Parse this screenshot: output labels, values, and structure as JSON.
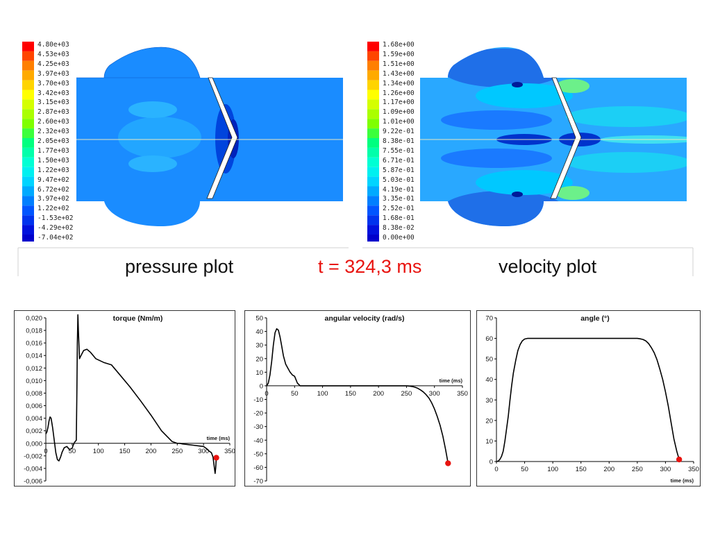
{
  "sim": {
    "pressure_legend": [
      "4.80e+03",
      "4.53e+03",
      "4.25e+03",
      "3.97e+03",
      "3.70e+03",
      "3.42e+03",
      "3.15e+03",
      "2.87e+03",
      "2.60e+03",
      "2.32e+03",
      "2.05e+03",
      "1.77e+03",
      "1.50e+03",
      "1.22e+03",
      "9.47e+02",
      "6.72e+02",
      "3.97e+02",
      "1.22e+02",
      "-1.53e+02",
      "-4.29e+02",
      "-7.04e+02"
    ],
    "velocity_legend": [
      "1.68e+00",
      "1.59e+00",
      "1.51e+00",
      "1.43e+00",
      "1.34e+00",
      "1.26e+00",
      "1.17e+00",
      "1.09e+00",
      "1.01e+00",
      "9.22e-01",
      "8.38e-01",
      "7.55e-01",
      "6.71e-01",
      "5.87e-01",
      "5.03e-01",
      "4.19e-01",
      "3.35e-01",
      "2.52e-01",
      "1.68e-01",
      "8.38e-02",
      "0.00e+00"
    ],
    "legend_colors": [
      "#ff0000",
      "#ff4500",
      "#ff7f00",
      "#ffaa00",
      "#ffd400",
      "#ffff00",
      "#d4ff00",
      "#aaff00",
      "#7fff00",
      "#3cff3c",
      "#00ff7f",
      "#00ffaa",
      "#00ffd4",
      "#00f0f0",
      "#00d4ff",
      "#00aaff",
      "#007fff",
      "#0055ff",
      "#0033ee",
      "#0011dd",
      "#0000cc"
    ],
    "pressure_caption": "pressure plot",
    "time_caption": "t = 324,3 ms",
    "velocity_caption": "velocity plot"
  },
  "chart_data": [
    {
      "type": "line",
      "title": "torque (Nm/m)",
      "xlabel": "time (ms)",
      "ylabel": "",
      "xlim": [
        0,
        350
      ],
      "ylim": [
        -0.006,
        0.02
      ],
      "x_ticks": [
        0,
        50,
        100,
        150,
        200,
        250,
        300,
        350
      ],
      "y_ticks": [
        -0.006,
        -0.004,
        -0.002,
        0.0,
        0.002,
        0.004,
        0.006,
        0.008,
        0.01,
        0.012,
        0.014,
        0.016,
        0.018,
        0.02
      ],
      "y_tick_labels": [
        "-0,006",
        "-0,004",
        "-0,002",
        "0,000",
        "0,002",
        "0,004",
        "0,006",
        "0,008",
        "0,010",
        "0,012",
        "0,014",
        "0,016",
        "0,018",
        "0,020"
      ],
      "series": [
        {
          "x": [
            0,
            2,
            4,
            6,
            8,
            10,
            13,
            16,
            19,
            22,
            25,
            28,
            31,
            35,
            40,
            45,
            50,
            52,
            55,
            58,
            59,
            60,
            61,
            62,
            64,
            67,
            72,
            78,
            85,
            95,
            110,
            125,
            140,
            160,
            180,
            200,
            220,
            240,
            250,
            255,
            260,
            270,
            280,
            290,
            300,
            305,
            310,
            315,
            318,
            320,
            322,
            323,
            324.3
          ],
          "y": [
            0.0015,
            0.0018,
            0.0025,
            0.0035,
            0.0042,
            0.004,
            0.0025,
            0.0005,
            -0.0015,
            -0.0026,
            -0.0028,
            -0.0022,
            -0.0014,
            -0.0007,
            -0.0005,
            -0.001,
            -0.0008,
            -0.0003,
            0.0002,
            0.0005,
            0.008,
            0.016,
            0.0205,
            0.018,
            0.0135,
            0.014,
            0.0148,
            0.015,
            0.0145,
            0.0135,
            0.0129,
            0.0125,
            0.011,
            0.009,
            0.0068,
            0.0045,
            0.002,
            0.0003,
            0.0,
            0.0,
            -0.0001,
            -0.0002,
            -0.0003,
            -0.0004,
            -0.0005,
            -0.0008,
            -0.0012,
            -0.0015,
            -0.0022,
            -0.0035,
            -0.0048,
            -0.004,
            -0.0023
          ]
        }
      ],
      "marker": {
        "x": 324.3,
        "y": -0.0023
      },
      "marker_color": "#e8130f"
    },
    {
      "type": "line",
      "title": "angular velocity (rad/s)",
      "xlabel": "time (ms)",
      "ylabel": "",
      "xlim": [
        0,
        350
      ],
      "ylim": [
        -70,
        50
      ],
      "x_ticks": [
        0,
        50,
        100,
        150,
        200,
        250,
        300,
        350
      ],
      "y_ticks": [
        -70,
        -60,
        -50,
        -40,
        -30,
        -20,
        -10,
        0,
        10,
        20,
        30,
        40,
        50
      ],
      "y_tick_labels": [
        "-70",
        "-60",
        "-50",
        "-40",
        "-30",
        "-20",
        "-10",
        "0",
        "10",
        "20",
        "30",
        "40",
        "50"
      ],
      "series": [
        {
          "x": [
            0,
            3,
            6,
            9,
            12,
            15,
            18,
            21,
            24,
            27,
            30,
            34,
            38,
            42,
            46,
            50,
            52,
            55,
            60,
            100,
            150,
            200,
            240,
            250,
            255,
            260,
            265,
            270,
            275,
            280,
            285,
            290,
            295,
            300,
            305,
            310,
            315,
            320,
            324.3
          ],
          "y": [
            0,
            2,
            8,
            18,
            30,
            39,
            42,
            41,
            36,
            29,
            22,
            16,
            13,
            10,
            8,
            7,
            5,
            2,
            0,
            0,
            0,
            0,
            0,
            0,
            -0.2,
            -0.5,
            -1,
            -1.8,
            -3,
            -4.5,
            -6.5,
            -9,
            -12.5,
            -17,
            -22.5,
            -29,
            -37,
            -47,
            -57
          ]
        }
      ],
      "marker": {
        "x": 324.3,
        "y": -57
      },
      "marker_color": "#e8130f"
    },
    {
      "type": "line",
      "title": "angle (°)",
      "xlabel": "time (ms)",
      "ylabel": "",
      "xlim": [
        0,
        350
      ],
      "ylim": [
        0,
        70
      ],
      "x_ticks": [
        0,
        50,
        100,
        150,
        200,
        250,
        300,
        350
      ],
      "y_ticks": [
        0,
        10,
        20,
        30,
        40,
        50,
        60,
        70
      ],
      "y_tick_labels": [
        "0",
        "10",
        "20",
        "30",
        "40",
        "50",
        "60",
        "70"
      ],
      "series": [
        {
          "x": [
            0,
            3,
            6,
            9,
            12,
            15,
            18,
            21,
            24,
            27,
            30,
            34,
            38,
            42,
            46,
            50,
            55,
            60,
            100,
            150,
            200,
            240,
            250,
            255,
            260,
            265,
            270,
            275,
            280,
            285,
            290,
            295,
            300,
            305,
            310,
            315,
            320,
            324.3
          ],
          "y": [
            0,
            0.2,
            1,
            2.5,
            5,
            10,
            16,
            22,
            30,
            37,
            43,
            49,
            54,
            57,
            58.8,
            59.7,
            60,
            60,
            60,
            60,
            60,
            60,
            60,
            59.8,
            59.5,
            58.8,
            57.5,
            55.5,
            53,
            49.5,
            45,
            40,
            34,
            27,
            19,
            11,
            5,
            1
          ]
        }
      ],
      "marker": {
        "x": 324.3,
        "y": 1
      },
      "marker_color": "#e8130f"
    }
  ]
}
